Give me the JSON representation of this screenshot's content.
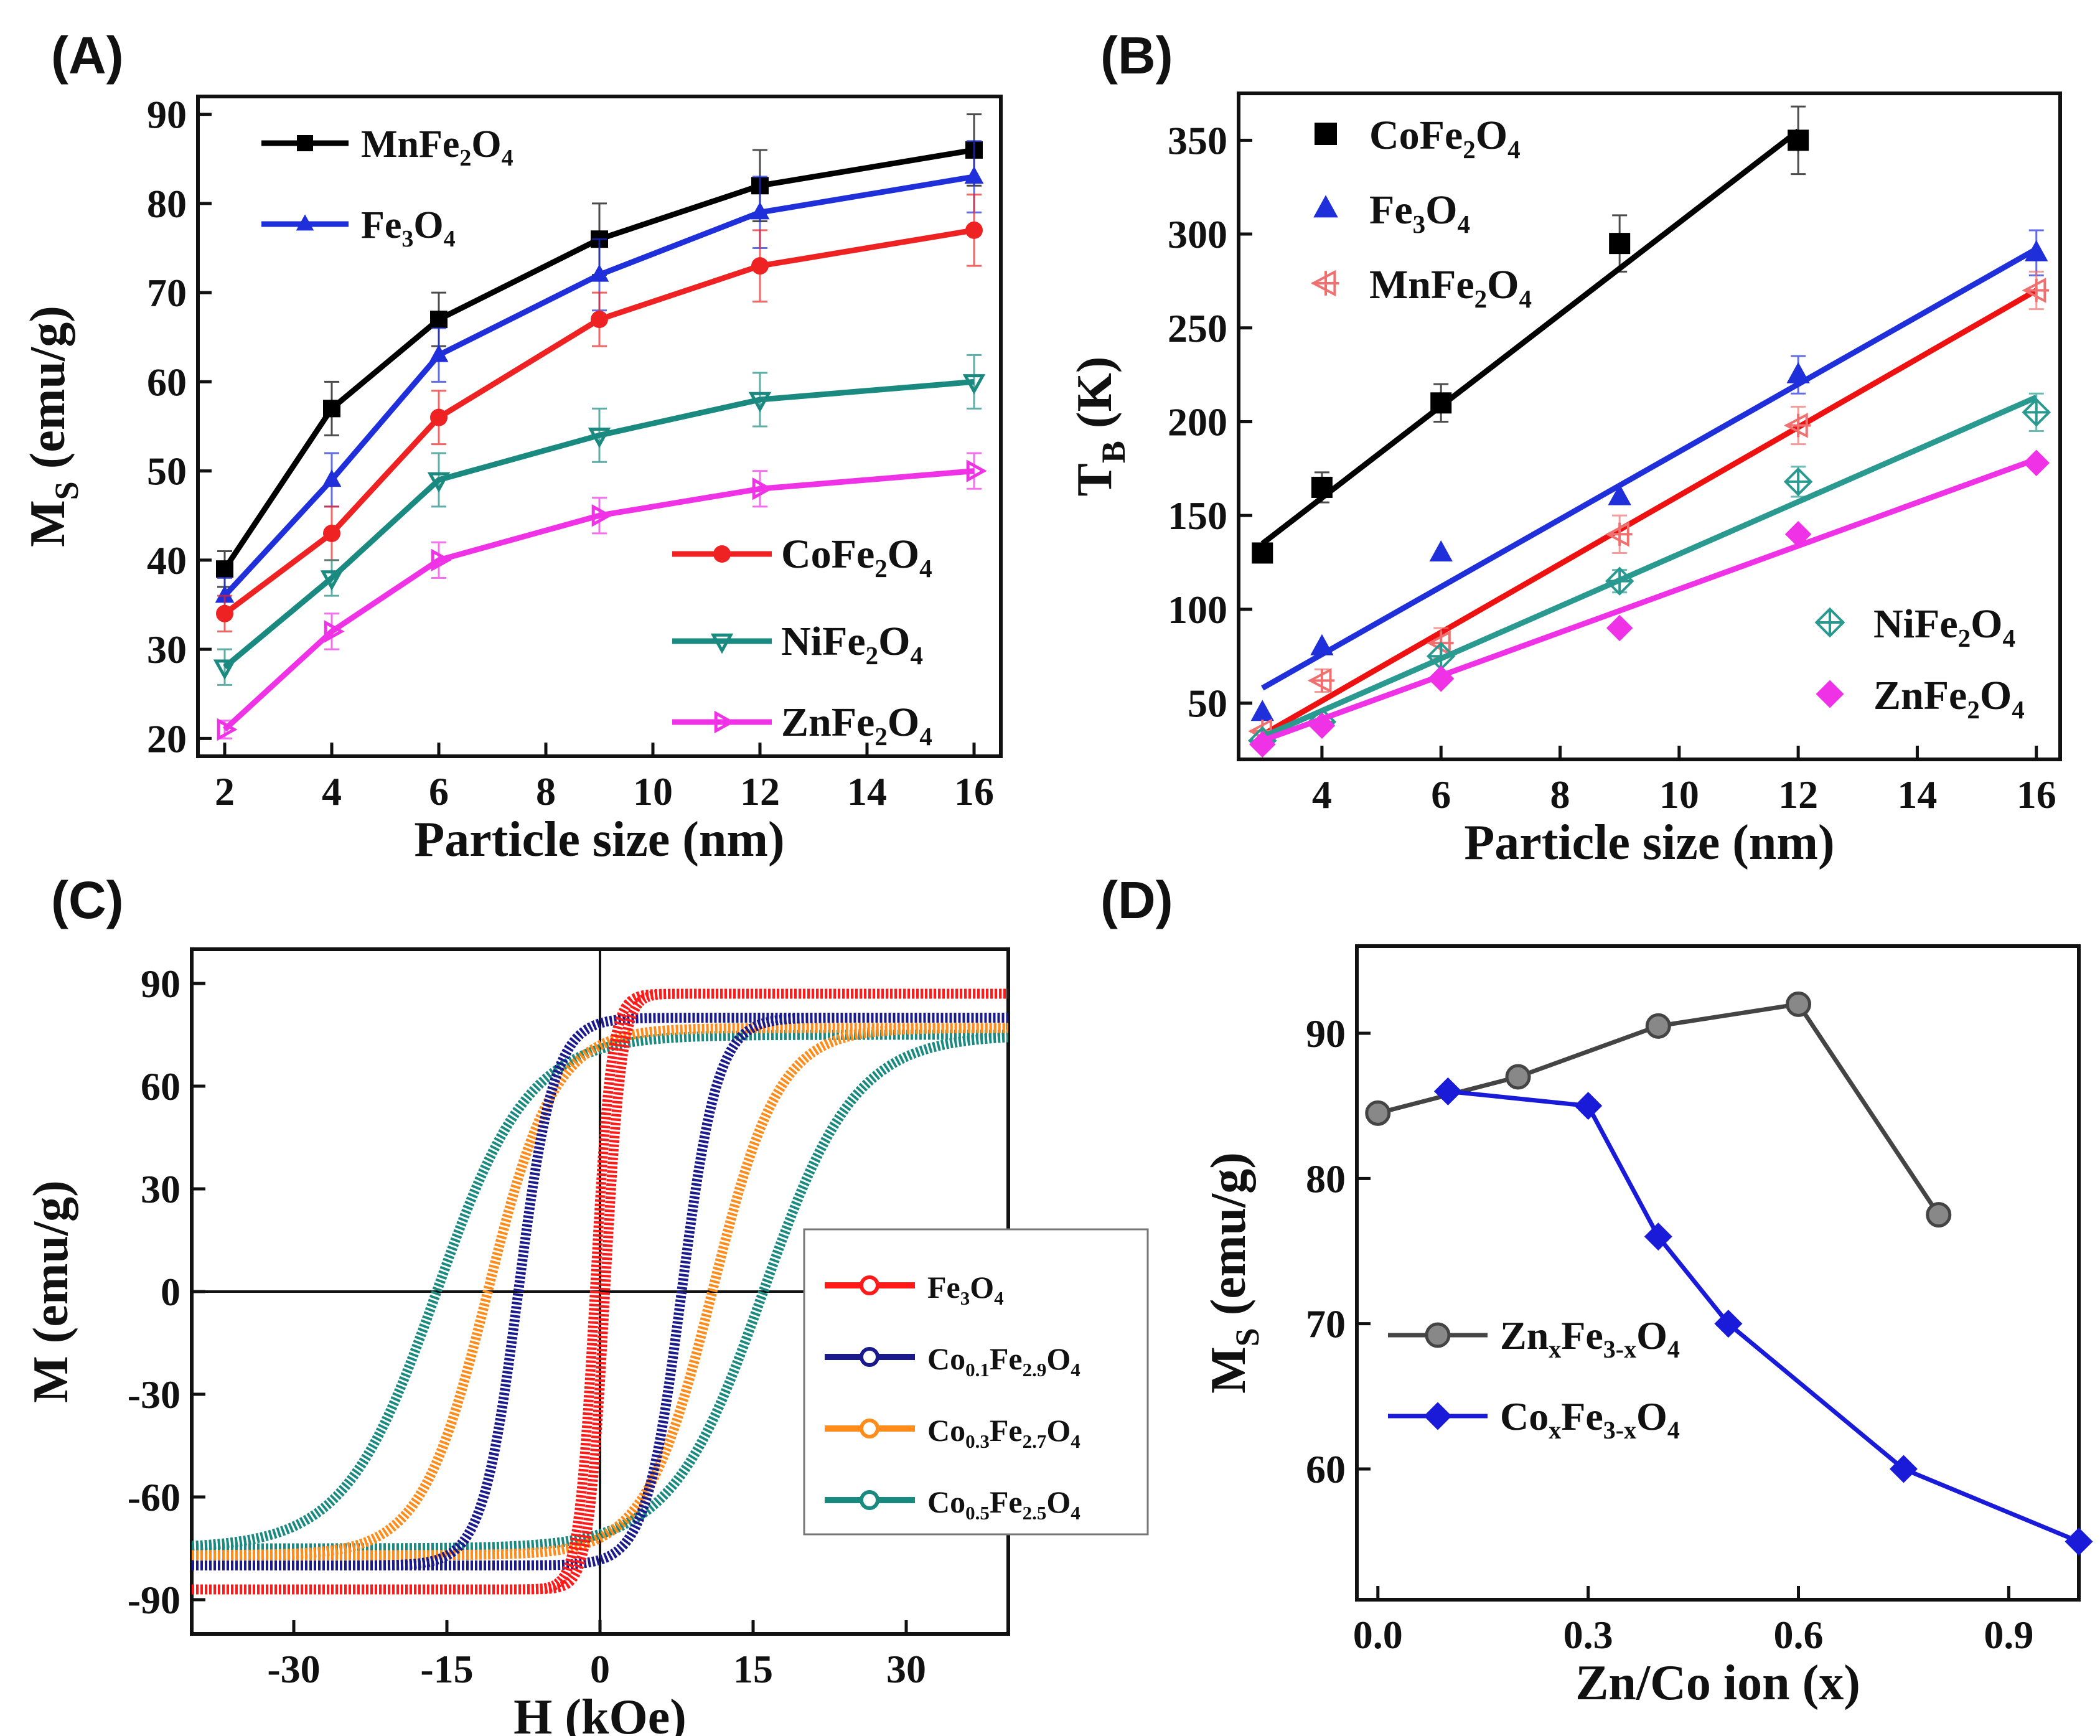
{
  "chart_data": [
    {
      "panel": "(A)",
      "type": "line",
      "xlabel": "Particle size (nm)",
      "ylabel": "M",
      "ylabel_sub": "S",
      "ylabel_unit": " (emu/g)",
      "xlim": [
        1.5,
        16.5
      ],
      "ylim": [
        18,
        92
      ],
      "xticks": [
        2,
        4,
        6,
        8,
        10,
        12,
        14,
        16
      ],
      "yticks": [
        20,
        30,
        40,
        50,
        60,
        70,
        80,
        90
      ],
      "x": [
        2,
        4,
        6,
        9,
        12,
        16
      ],
      "series": [
        {
          "name": "MnFe2O4",
          "label": [
            [
              "Mn",
              ""
            ],
            [
              "Fe",
              ""
            ],
            [
              "2",
              "sub"
            ],
            [
              "O",
              ""
            ],
            [
              "4",
              "sub"
            ]
          ],
          "color": "#000000",
          "marker": "square",
          "values": [
            39,
            57,
            67,
            76,
            82,
            86
          ],
          "err": [
            2,
            3,
            3,
            4,
            4,
            4
          ]
        },
        {
          "name": "Fe3O4",
          "label": [
            [
              "Fe",
              ""
            ],
            [
              "3",
              "sub"
            ],
            [
              "O",
              ""
            ],
            [
              "4",
              "sub"
            ]
          ],
          "color": "#1f2fd9",
          "marker": "triangle",
          "values": [
            36,
            49,
            63,
            72,
            79,
            83
          ],
          "err": [
            2,
            3,
            3,
            4,
            4,
            4
          ]
        },
        {
          "name": "CoFe2O4",
          "label": [
            [
              "Co",
              ""
            ],
            [
              "Fe",
              ""
            ],
            [
              "2",
              "sub"
            ],
            [
              "O",
              ""
            ],
            [
              "4",
              "sub"
            ]
          ],
          "color": "#ee2222",
          "marker": "circle",
          "values": [
            34,
            43,
            56,
            67,
            73,
            77
          ],
          "err": [
            2,
            3,
            3,
            3,
            4,
            4
          ]
        },
        {
          "name": "NiFe2O4",
          "label": [
            [
              "Ni",
              ""
            ],
            [
              "Fe",
              ""
            ],
            [
              "2",
              "sub"
            ],
            [
              "O",
              ""
            ],
            [
              "4",
              "sub"
            ]
          ],
          "color": "#1a8a80",
          "marker": "tri-down",
          "values": [
            28,
            38,
            49,
            54,
            58,
            60
          ],
          "err": [
            2,
            2,
            3,
            3,
            3,
            3
          ]
        },
        {
          "name": "ZnFe2O4",
          "label": [
            [
              "Zn",
              ""
            ],
            [
              "Fe",
              ""
            ],
            [
              "2",
              "sub"
            ],
            [
              "O",
              ""
            ],
            [
              "4",
              "sub"
            ]
          ],
          "color": "#f032e6",
          "marker": "tri-right",
          "values": [
            21,
            32,
            40,
            45,
            48,
            50
          ],
          "err": [
            1,
            2,
            2,
            2,
            2,
            2
          ]
        }
      ]
    },
    {
      "panel": "(B)",
      "type": "scatter",
      "xlabel": "Particle size (nm)",
      "ylabel": "T",
      "ylabel_sub": "B",
      "ylabel_unit": " (K)",
      "xlim": [
        2.6,
        16.4
      ],
      "ylim": [
        20,
        375
      ],
      "xticks": [
        4,
        6,
        8,
        10,
        12,
        14,
        16
      ],
      "yticks": [
        50,
        100,
        150,
        200,
        250,
        300,
        350
      ],
      "series": [
        {
          "name": "CoFe2O4",
          "label": [
            [
              "Co",
              ""
            ],
            [
              "Fe",
              ""
            ],
            [
              "2",
              "sub"
            ],
            [
              "O",
              ""
            ],
            [
              "4",
              "sub"
            ]
          ],
          "color": "#000000",
          "marker": "square",
          "x": [
            3,
            4,
            6,
            9,
            12
          ],
          "values": [
            130,
            165,
            210,
            295,
            350
          ],
          "err": [
            0,
            8,
            10,
            15,
            18
          ],
          "fit": [
            [
              3,
              135
            ],
            [
              12,
              355
            ]
          ]
        },
        {
          "name": "Fe3O4",
          "label": [
            [
              "Fe",
              ""
            ],
            [
              "3",
              "sub"
            ],
            [
              "O",
              ""
            ],
            [
              "4",
              "sub"
            ]
          ],
          "color": "#1f2fd9",
          "marker": "triangle",
          "x": [
            3,
            4,
            6,
            9,
            12,
            16
          ],
          "values": [
            45,
            80,
            130,
            160,
            225,
            290
          ],
          "err": [
            0,
            0,
            0,
            0,
            10,
            12
          ],
          "fit": [
            [
              3,
              58
            ],
            [
              16,
              292
            ]
          ]
        },
        {
          "name": "MnFe2O4",
          "label": [
            [
              "Mn",
              ""
            ],
            [
              "Fe",
              ""
            ],
            [
              "2",
              "sub"
            ],
            [
              "O",
              ""
            ],
            [
              "4",
              "sub"
            ]
          ],
          "color": "#f07070",
          "marker": "open-tri-left",
          "x": [
            3,
            4,
            6,
            9,
            12,
            16
          ],
          "values": [
            35,
            62,
            82,
            140,
            198,
            270
          ],
          "err": [
            0,
            6,
            8,
            10,
            10,
            10
          ],
          "fit": [
            [
              3,
              33
            ],
            [
              16,
              270
            ]
          ]
        },
        {
          "name": "NiFe2O4",
          "label": [
            [
              "Ni",
              ""
            ],
            [
              "Fe",
              ""
            ],
            [
              "2",
              "sub"
            ],
            [
              "O",
              ""
            ],
            [
              "4",
              "sub"
            ]
          ],
          "color": "#2a9a90",
          "marker": "open-diamond-plus",
          "x": [
            3,
            4,
            6,
            9,
            12,
            16
          ],
          "values": [
            30,
            40,
            75,
            115,
            168,
            205
          ],
          "err": [
            0,
            0,
            0,
            6,
            8,
            10
          ],
          "fit": [
            [
              3,
              32
            ],
            [
              16,
              213
            ]
          ]
        },
        {
          "name": "ZnFe2O4",
          "label": [
            [
              "Zn",
              ""
            ],
            [
              "Fe",
              ""
            ],
            [
              "2",
              "sub"
            ],
            [
              "O",
              ""
            ],
            [
              "4",
              "sub"
            ]
          ],
          "color": "#f032e6",
          "marker": "diamond",
          "x": [
            3,
            4,
            6,
            9,
            12,
            16
          ],
          "values": [
            28,
            38,
            63,
            90,
            140,
            178
          ],
          "err": [
            0,
            0,
            0,
            0,
            0,
            0
          ],
          "fit": [
            [
              3,
              30
            ],
            [
              16,
              180
            ]
          ]
        }
      ]
    },
    {
      "panel": "(C)",
      "type": "line",
      "subtype": "hysteresis",
      "xlabel": "H (kOe)",
      "ylabel": "M (emu/g)",
      "xlim": [
        -40,
        40
      ],
      "ylim": [
        -100,
        100
      ],
      "xticks": [
        -30,
        -15,
        0,
        15,
        30
      ],
      "yticks": [
        -90,
        -60,
        -30,
        0,
        30,
        60,
        90
      ],
      "series": [
        {
          "name": "Fe3O4",
          "label": [
            [
              "Fe",
              ""
            ],
            [
              "3",
              "sub"
            ],
            [
              "O",
              ""
            ],
            [
              "4",
              "sub"
            ]
          ],
          "color": "#ff1a1a",
          "ms": 87,
          "mr": 65,
          "hc": 0.5,
          "w": 1.6
        },
        {
          "name": "Co0.1Fe2.9O4",
          "label": [
            [
              "Co",
              ""
            ],
            [
              "0.1",
              "sub"
            ],
            [
              "Fe",
              ""
            ],
            [
              "2.9",
              "sub"
            ],
            [
              "O",
              ""
            ],
            [
              "4",
              "sub"
            ]
          ],
          "color": "#1a1a8c",
          "ms": 80,
          "mr": 62,
          "hc": 8,
          "w": 3.5
        },
        {
          "name": "Co0.3Fe2.7O4",
          "label": [
            [
              "Co",
              ""
            ],
            [
              "0.3",
              "sub"
            ],
            [
              "Fe",
              ""
            ],
            [
              "2.7",
              "sub"
            ],
            [
              "O",
              ""
            ],
            [
              "4",
              "sub"
            ]
          ],
          "color": "#ff8c1a",
          "ms": 77,
          "mr": 60,
          "hc": 11,
          "w": 6.5
        },
        {
          "name": "Co0.5Fe2.5O4",
          "label": [
            [
              "Co",
              ""
            ],
            [
              "0.5",
              "sub"
            ],
            [
              "Fe",
              ""
            ],
            [
              "2.5",
              "sub"
            ],
            [
              "O",
              ""
            ],
            [
              "4",
              "sub"
            ]
          ],
          "color": "#1a8a80",
          "ms": 75,
          "mr": 58,
          "hc": 16,
          "w": 9
        }
      ]
    },
    {
      "panel": "(D)",
      "type": "line",
      "xlabel": "Zn/Co ion (x)",
      "ylabel": "M",
      "ylabel_sub": "S",
      "ylabel_unit": " (emu/g)",
      "xlim": [
        -0.03,
        1.0
      ],
      "ylim": [
        51,
        96
      ],
      "xticks": [
        0.0,
        0.3,
        0.6,
        0.9
      ],
      "xtick_labels": [
        "0.0",
        "0.3",
        "0.6",
        "0.9"
      ],
      "yticks": [
        60,
        70,
        80,
        90
      ],
      "series": [
        {
          "name": "ZnxFe3-xO4",
          "label": [
            [
              "Zn",
              ""
            ],
            [
              "x",
              "sub"
            ],
            [
              "Fe",
              ""
            ],
            [
              "3-x",
              "sub"
            ],
            [
              "O",
              ""
            ],
            [
              "4",
              "sub"
            ]
          ],
          "color": "#444444",
          "marker": "circle-shaded",
          "x": [
            0.0,
            0.2,
            0.4,
            0.6,
            0.8
          ],
          "values": [
            84.5,
            87,
            90.5,
            92,
            77.5
          ]
        },
        {
          "name": "CoxFe3-xO4",
          "label": [
            [
              "Co",
              ""
            ],
            [
              "x",
              "sub"
            ],
            [
              "Fe",
              ""
            ],
            [
              "3-x",
              "sub"
            ],
            [
              "O",
              ""
            ],
            [
              "4",
              "sub"
            ]
          ],
          "color": "#1a1ad9",
          "marker": "diamond",
          "x": [
            0.1,
            0.3,
            0.4,
            0.5,
            0.75,
            1.0
          ],
          "values": [
            86,
            85,
            76,
            70,
            60,
            55
          ]
        }
      ]
    }
  ]
}
